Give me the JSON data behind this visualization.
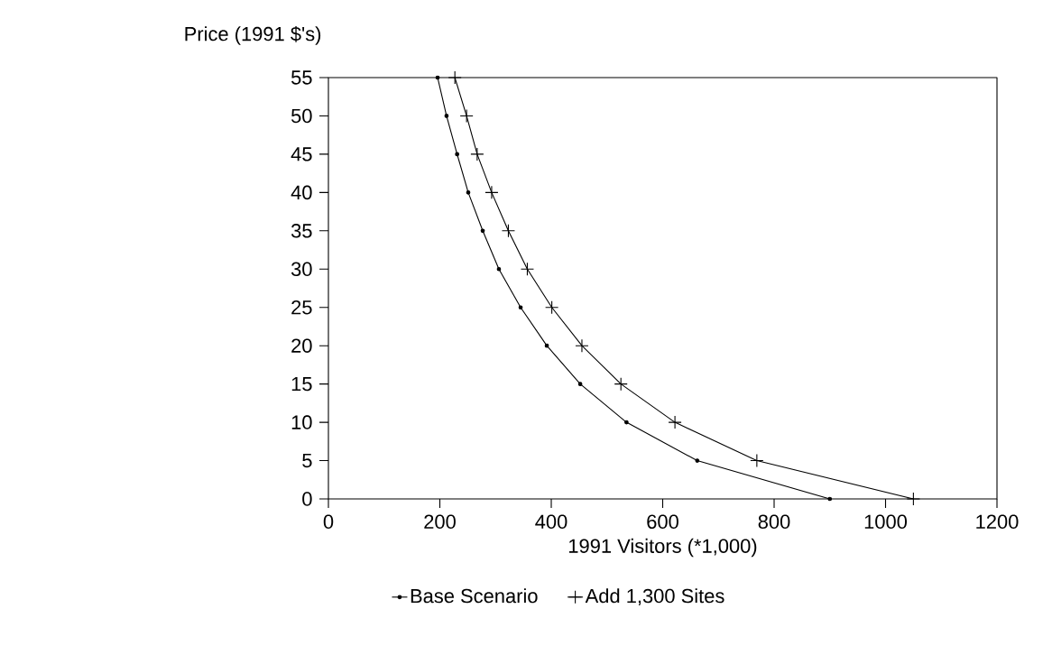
{
  "chart_data": {
    "type": "line",
    "xlabel": "1991 Visitors (*1,000)",
    "ylabel": "Price (1991 $'s)",
    "xlim": [
      0,
      1200
    ],
    "ylim": [
      0,
      55
    ],
    "xticks": [
      0,
      200,
      400,
      600,
      800,
      1000,
      1200
    ],
    "yticks": [
      0,
      5,
      10,
      15,
      20,
      25,
      30,
      35,
      40,
      45,
      50,
      55
    ],
    "grid": false,
    "legend": "bottom",
    "series": [
      {
        "name": "Base Scenario",
        "color": "#000000",
        "marker": "circle",
        "x": [
          196,
          212,
          231,
          251,
          277,
          306,
          345,
          392,
          452,
          535,
          662,
          900
        ],
        "values": [
          55,
          50,
          45,
          40,
          35,
          30,
          25,
          20,
          15,
          10,
          5,
          0
        ]
      },
      {
        "name": "Add 1,300 Sites",
        "color": "#000000",
        "marker": "cross",
        "x": [
          227,
          248,
          267,
          293,
          323,
          357,
          401,
          455,
          525,
          622,
          769,
          1050
        ],
        "values": [
          55,
          50,
          45,
          40,
          35,
          30,
          25,
          20,
          15,
          10,
          5,
          0
        ]
      }
    ]
  }
}
